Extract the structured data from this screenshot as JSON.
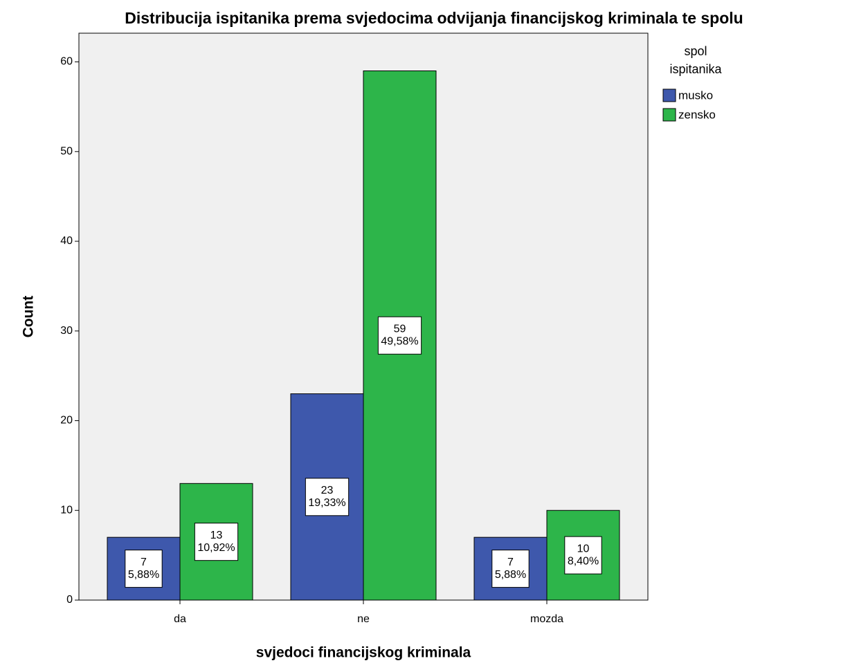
{
  "chart_data": {
    "type": "bar",
    "title": "Distribucija ispitanika prema svjedocima odvijanja financijskog kriminala te spolu",
    "x_label": "svjedoci financijskog kriminala",
    "y_label": "Count",
    "legend_title": [
      "spol",
      "ispitanika"
    ],
    "categories": [
      "da",
      "ne",
      "mozda"
    ],
    "series": [
      {
        "name": "musko",
        "color": "#3e58ac",
        "values": [
          7,
          23,
          7
        ],
        "percent_labels": [
          "5,88%",
          "19,33%",
          "5,88%"
        ]
      },
      {
        "name": "zensko",
        "color": "#2db54a",
        "values": [
          13,
          59,
          10
        ],
        "percent_labels": [
          "10,92%",
          "49,58%",
          "8,40%"
        ]
      }
    ],
    "ylim": [
      0,
      63.2
    ],
    "yticks": [
      0,
      10,
      20,
      30,
      40,
      50,
      60
    ],
    "legend": "right"
  }
}
